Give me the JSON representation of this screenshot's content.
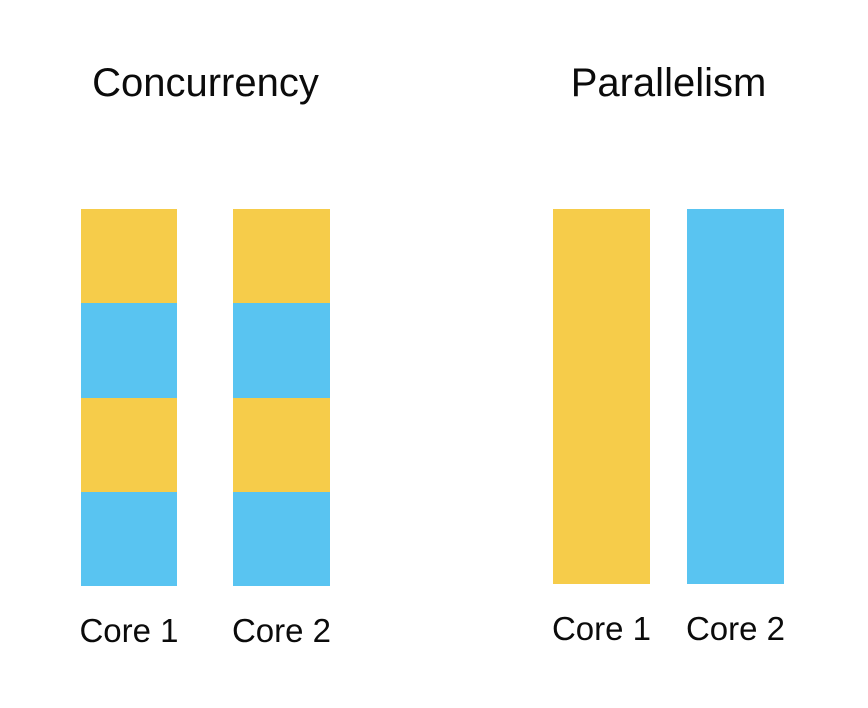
{
  "background": "#ffffff",
  "text_color": "#0b0b0b",
  "colors": {
    "yellow": "#F6CC4A",
    "blue": "#59C4F1"
  },
  "panels": [
    {
      "title": "Concurrency",
      "bars": [
        {
          "label": "Core 1",
          "segments": [
            "yellow",
            "blue",
            "yellow",
            "blue"
          ]
        },
        {
          "label": "Core 2",
          "segments": [
            "yellow",
            "blue",
            "yellow",
            "blue"
          ]
        }
      ]
    },
    {
      "title": "Parallelism",
      "bars": [
        {
          "label": "Core 1",
          "segments": [
            "yellow"
          ]
        },
        {
          "label": "Core 2",
          "segments": [
            "blue"
          ]
        }
      ]
    }
  ]
}
